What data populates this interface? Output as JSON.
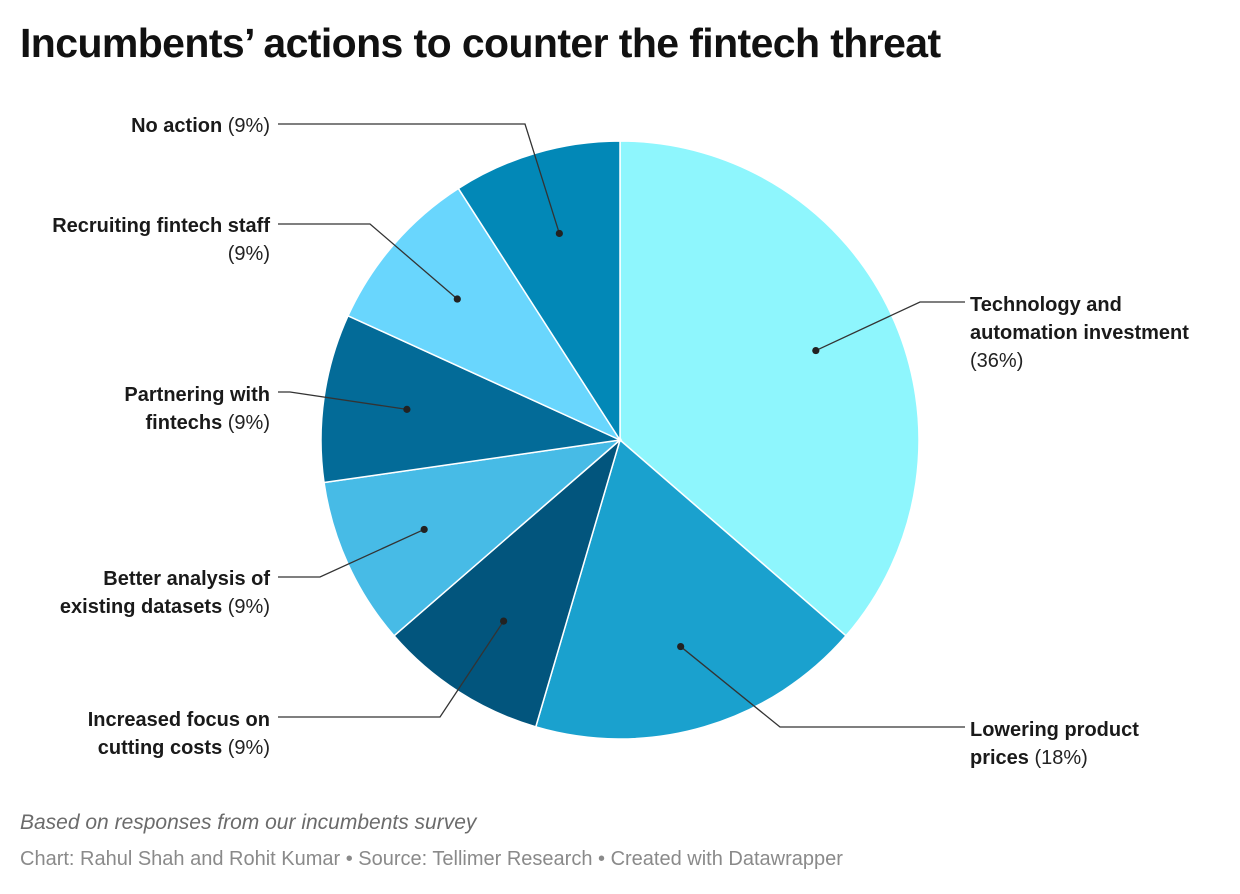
{
  "chart_data": {
    "type": "pie",
    "title": "Incumbents’ actions to counter the fintech threat",
    "slices": [
      {
        "label": "Technology and automation investment",
        "value": 36,
        "pct_label": "(36%)",
        "color": "#8ef6fd"
      },
      {
        "label": "Lowering product prices",
        "value": 18,
        "pct_label": "(18%)",
        "color": "#1aa1ce"
      },
      {
        "label": "Increased focus on cutting costs",
        "value": 9,
        "pct_label": "(9%)",
        "color": "#02557d"
      },
      {
        "label": "Better analysis of existing datasets",
        "value": 9,
        "pct_label": "(9%)",
        "color": "#47bbe6"
      },
      {
        "label": "Partnering with fintechs",
        "value": 9,
        "pct_label": "(9%)",
        "color": "#036b98"
      },
      {
        "label": "Recruiting fintech staff",
        "value": 9,
        "pct_label": "(9%)",
        "color": "#69d6fd"
      },
      {
        "label": "No action",
        "value": 9,
        "pct_label": "(9%)",
        "color": "#0288b7"
      }
    ],
    "footnote": "Based on responses from our incumbents survey",
    "credits": "Chart: Rahul Shah and Rohit Kumar • Source: Tellimer Research • Created with Datawrapper"
  }
}
